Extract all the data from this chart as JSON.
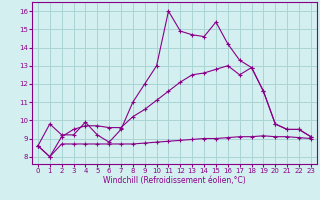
{
  "xlabel": "Windchill (Refroidissement éolien,°C)",
  "bg_color": "#d4efef",
  "grid_color": "#aad4d4",
  "line_color": "#880088",
  "spine_color": "#880088",
  "xlim": [
    -0.5,
    23.5
  ],
  "ylim": [
    7.6,
    16.5
  ],
  "x_ticks": [
    0,
    1,
    2,
    3,
    4,
    5,
    6,
    7,
    8,
    9,
    10,
    11,
    12,
    13,
    14,
    15,
    16,
    17,
    18,
    19,
    20,
    21,
    22,
    23
  ],
  "y_ticks": [
    8,
    9,
    10,
    11,
    12,
    13,
    14,
    15,
    16
  ],
  "s1_y": [
    8.6,
    9.8,
    9.2,
    9.2,
    9.9,
    9.2,
    8.8,
    9.5,
    11.0,
    12.0,
    13.0,
    16.0,
    14.9,
    14.7,
    14.6,
    15.4,
    14.2,
    13.3,
    12.9,
    11.6,
    9.8,
    9.5,
    9.5,
    9.1
  ],
  "s2_y": [
    8.6,
    8.0,
    8.7,
    8.7,
    8.7,
    8.7,
    8.7,
    8.7,
    8.7,
    8.75,
    8.8,
    8.85,
    8.9,
    8.95,
    9.0,
    9.0,
    9.05,
    9.1,
    9.1,
    9.15,
    9.1,
    9.1,
    9.05,
    9.0
  ],
  "s3_y": [
    8.6,
    8.0,
    9.1,
    9.5,
    9.7,
    9.7,
    9.6,
    9.6,
    10.2,
    10.6,
    11.1,
    11.6,
    12.1,
    12.5,
    12.6,
    12.8,
    13.0,
    12.5,
    12.9,
    11.6,
    9.8,
    9.5,
    9.5,
    9.1
  ],
  "tick_fontsize": 5,
  "xlabel_fontsize": 5.5
}
